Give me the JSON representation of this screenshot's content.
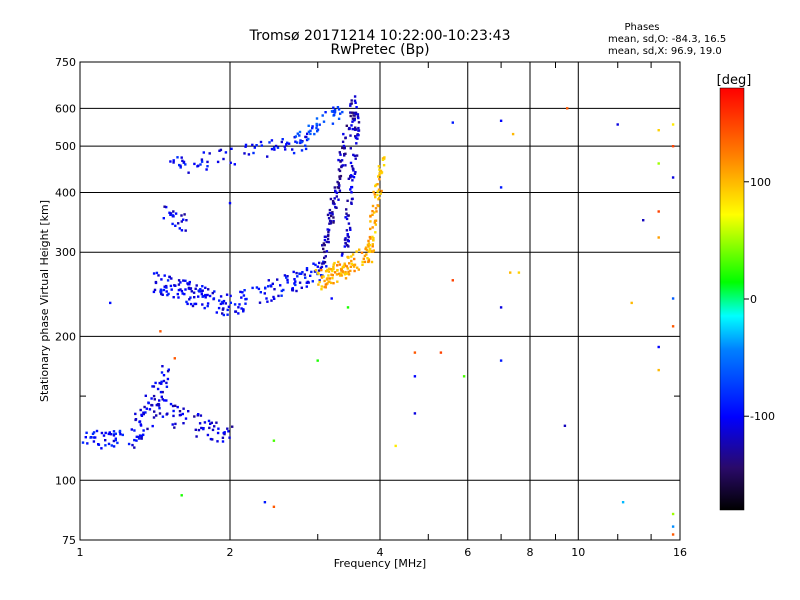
{
  "chart_data": {
    "type": "scatter",
    "title": "Tromsø 20171214 10:22:00-10:23:43",
    "subtitle": "RwPretec (Bp)",
    "xlabel": "Frequency [MHz]",
    "ylabel": "Stationary phase Virtual Height [km]",
    "x_scale": "log",
    "y_scale": "log",
    "xlim": [
      1,
      16
    ],
    "ylim": [
      75,
      750
    ],
    "x_ticks": [
      1,
      2,
      4,
      6,
      8,
      10,
      16
    ],
    "x_tick_labels": [
      "1",
      "2",
      "4",
      "6",
      "8",
      "10",
      "16"
    ],
    "x_minor_ticks": [
      3,
      5,
      7,
      9,
      12,
      14
    ],
    "y_ticks": [
      75,
      100,
      200,
      300,
      400,
      500,
      600,
      750
    ],
    "y_tick_labels": [
      "75",
      "100",
      "200",
      "300",
      "400",
      "500",
      "600",
      "750"
    ],
    "y_minor_ticks": [
      150
    ],
    "grid": true,
    "stats": {
      "heading": "Phases",
      "line_o": "mean, sd,O: -84.3, 16.5",
      "line_x": "mean, sd,X:  96.9, 19.0"
    },
    "colorbar": {
      "label": "[deg]",
      "range": [
        -180,
        180
      ],
      "ticks": [
        100,
        0,
        -100
      ],
      "tick_labels": [
        "100",
        "0",
        "-100"
      ]
    },
    "traces": [
      {
        "x0": 1.0,
        "x1": 1.28,
        "h0": 120,
        "h1": 125,
        "phase": -95,
        "n": 40,
        "spread": 0.045
      },
      {
        "x0": 1.28,
        "x1": 1.5,
        "h0": 122,
        "h1": 165,
        "phase": -108,
        "n": 75,
        "spread": 0.09
      },
      {
        "x0": 1.45,
        "x1": 2.0,
        "h0": 140,
        "h1": 123,
        "phase": -112,
        "n": 55,
        "spread": 0.06
      },
      {
        "x0": 1.42,
        "x1": 2.0,
        "h0": 260,
        "h1": 232,
        "phase": -102,
        "n": 110,
        "spread": 0.055
      },
      {
        "x0": 2.0,
        "x1": 3.1,
        "h0": 232,
        "h1": 275,
        "phase": -98,
        "n": 90,
        "spread": 0.05
      },
      {
        "x0": 3.05,
        "x1": 3.55,
        "h0": 280,
        "h1": 620,
        "phase": -125,
        "n": 110,
        "spread": 0.045
      },
      {
        "x0": 3.4,
        "x1": 3.62,
        "h0": 290,
        "h1": 640,
        "phase": -118,
        "n": 80,
        "spread": 0.035
      },
      {
        "x0": 1.5,
        "x1": 2.9,
        "h0": 450,
        "h1": 510,
        "phase": -98,
        "n": 70,
        "spread": 0.045
      },
      {
        "x0": 2.7,
        "x1": 3.35,
        "h0": 510,
        "h1": 600,
        "phase": -72,
        "n": 40,
        "spread": 0.04
      },
      {
        "x0": 1.48,
        "x1": 1.62,
        "h0": 360,
        "h1": 345,
        "phase": -110,
        "n": 22,
        "spread": 0.04
      },
      {
        "x0": 3.0,
        "x1": 3.9,
        "h0": 262,
        "h1": 300,
        "phase": 105,
        "n": 110,
        "spread": 0.05
      },
      {
        "x0": 3.8,
        "x1": 4.05,
        "h0": 300,
        "h1": 480,
        "phase": 100,
        "n": 60,
        "spread": 0.04
      }
    ],
    "isolated_points": [
      {
        "x": 1.15,
        "h": 235,
        "phase": -95
      },
      {
        "x": 1.45,
        "h": 205,
        "phase": 140
      },
      {
        "x": 1.55,
        "h": 180,
        "phase": 140
      },
      {
        "x": 1.6,
        "h": 93,
        "phase": 20
      },
      {
        "x": 2.0,
        "h": 380,
        "phase": -100
      },
      {
        "x": 2.35,
        "h": 90,
        "phase": -90
      },
      {
        "x": 2.45,
        "h": 88,
        "phase": 140
      },
      {
        "x": 2.45,
        "h": 121,
        "phase": 30
      },
      {
        "x": 3.2,
        "h": 240,
        "phase": -100
      },
      {
        "x": 3.45,
        "h": 230,
        "phase": 20
      },
      {
        "x": 3.0,
        "h": 178,
        "phase": 20
      },
      {
        "x": 4.3,
        "h": 118,
        "phase": 80
      },
      {
        "x": 4.7,
        "h": 185,
        "phase": 140
      },
      {
        "x": 4.7,
        "h": 165,
        "phase": -100
      },
      {
        "x": 4.7,
        "h": 138,
        "phase": -110
      },
      {
        "x": 5.3,
        "h": 185,
        "phase": 150
      },
      {
        "x": 5.6,
        "h": 262,
        "phase": 150
      },
      {
        "x": 5.9,
        "h": 165,
        "phase": 30
      },
      {
        "x": 5.6,
        "h": 560,
        "phase": -90
      },
      {
        "x": 7.0,
        "h": 565,
        "phase": -100
      },
      {
        "x": 7.0,
        "h": 410,
        "phase": -90
      },
      {
        "x": 7.0,
        "h": 230,
        "phase": -110
      },
      {
        "x": 7.0,
        "h": 178,
        "phase": -90
      },
      {
        "x": 7.3,
        "h": 272,
        "phase": 100
      },
      {
        "x": 7.6,
        "h": 272,
        "phase": 90
      },
      {
        "x": 7.4,
        "h": 530,
        "phase": 100
      },
      {
        "x": 9.5,
        "h": 600,
        "phase": 140
      },
      {
        "x": 9.4,
        "h": 130,
        "phase": -120
      },
      {
        "x": 12.0,
        "h": 555,
        "phase": -110
      },
      {
        "x": 12.3,
        "h": 90,
        "phase": -30
      },
      {
        "x": 12.8,
        "h": 235,
        "phase": 100
      },
      {
        "x": 13.5,
        "h": 350,
        "phase": -120
      },
      {
        "x": 14.5,
        "h": 540,
        "phase": 90
      },
      {
        "x": 14.5,
        "h": 460,
        "phase": 50
      },
      {
        "x": 14.5,
        "h": 365,
        "phase": 150
      },
      {
        "x": 14.5,
        "h": 322,
        "phase": 110
      },
      {
        "x": 14.5,
        "h": 190,
        "phase": -100
      },
      {
        "x": 14.5,
        "h": 170,
        "phase": 100
      },
      {
        "x": 15.5,
        "h": 555,
        "phase": 80
      },
      {
        "x": 15.5,
        "h": 500,
        "phase": 150
      },
      {
        "x": 15.5,
        "h": 430,
        "phase": -110
      },
      {
        "x": 15.5,
        "h": 240,
        "phase": -60
      },
      {
        "x": 15.5,
        "h": 210,
        "phase": 140
      },
      {
        "x": 15.5,
        "h": 85,
        "phase": 50
      },
      {
        "x": 15.5,
        "h": 80,
        "phase": -40
      },
      {
        "x": 15.5,
        "h": 77,
        "phase": 140
      }
    ]
  }
}
